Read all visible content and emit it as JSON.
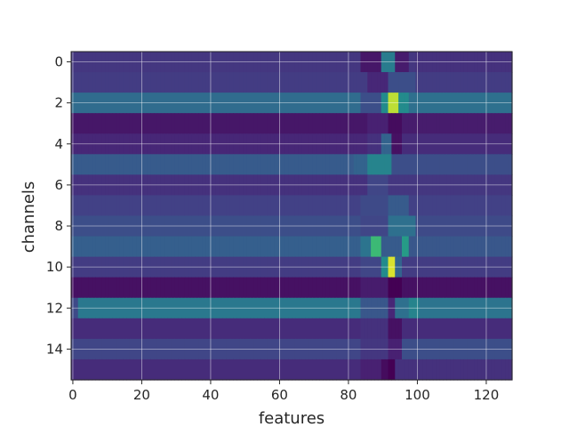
{
  "chart_data": {
    "type": "heatmap",
    "title": "",
    "xlabel": "features",
    "ylabel": "channels",
    "xlim": [
      -0.5,
      127.5
    ],
    "ylim": [
      15.5,
      -0.5
    ],
    "x_ticks": [
      0,
      20,
      40,
      60,
      80,
      100,
      120
    ],
    "y_ticks": [
      0,
      2,
      4,
      6,
      8,
      10,
      12,
      14
    ],
    "grid": true,
    "colormap": "viridis",
    "n_features": 128,
    "n_channels": 16,
    "rows": [
      {
        "channel": 0,
        "base": 0.2,
        "features": [
          [
            84,
            90,
            0.08
          ],
          [
            90,
            94,
            0.52
          ],
          [
            94,
            98,
            0.1
          ],
          [
            100,
            128,
            0.18
          ]
        ]
      },
      {
        "channel": 1,
        "base": 0.22,
        "features": [
          [
            86,
            92,
            0.14
          ],
          [
            92,
            100,
            0.3
          ],
          [
            100,
            128,
            0.22
          ]
        ]
      },
      {
        "channel": 2,
        "base": 0.44,
        "features": [
          [
            84,
            90,
            0.3
          ],
          [
            90,
            92,
            0.6
          ],
          [
            92,
            95,
            0.93
          ],
          [
            95,
            98,
            0.6
          ],
          [
            98,
            128,
            0.46
          ]
        ]
      },
      {
        "channel": 3,
        "base": 0.08,
        "features": [
          [
            86,
            92,
            0.12
          ],
          [
            92,
            96,
            0.04
          ],
          [
            96,
            128,
            0.1
          ]
        ]
      },
      {
        "channel": 4,
        "base": 0.14,
        "features": [
          [
            86,
            90,
            0.18
          ],
          [
            90,
            93,
            0.4
          ],
          [
            93,
            96,
            0.06
          ],
          [
            96,
            128,
            0.16
          ]
        ]
      },
      {
        "channel": 5,
        "base": 0.36,
        "features": [
          [
            82,
            86,
            0.4
          ],
          [
            86,
            93,
            0.56
          ],
          [
            93,
            128,
            0.3
          ]
        ]
      },
      {
        "channel": 6,
        "base": 0.18,
        "features": [
          [
            86,
            92,
            0.26
          ],
          [
            92,
            128,
            0.2
          ]
        ]
      },
      {
        "channel": 7,
        "base": 0.24,
        "features": [
          [
            84,
            92,
            0.28
          ],
          [
            92,
            98,
            0.36
          ],
          [
            98,
            128,
            0.24
          ]
        ]
      },
      {
        "channel": 8,
        "base": 0.3,
        "features": [
          [
            84,
            92,
            0.26
          ],
          [
            92,
            100,
            0.46
          ],
          [
            100,
            128,
            0.28
          ]
        ]
      },
      {
        "channel": 9,
        "base": 0.38,
        "features": [
          [
            84,
            87,
            0.48
          ],
          [
            87,
            90,
            0.76
          ],
          [
            90,
            96,
            0.36
          ],
          [
            96,
            98,
            0.66
          ],
          [
            98,
            128,
            0.34
          ]
        ]
      },
      {
        "channel": 10,
        "base": 0.22,
        "features": [
          [
            84,
            90,
            0.26
          ],
          [
            90,
            92,
            0.6
          ],
          [
            92,
            94,
            0.96
          ],
          [
            94,
            96,
            0.4
          ],
          [
            96,
            128,
            0.22
          ]
        ]
      },
      {
        "channel": 11,
        "base": 0.06,
        "features": [
          [
            84,
            92,
            0.1
          ],
          [
            92,
            96,
            0.0
          ],
          [
            96,
            128,
            0.06
          ]
        ]
      },
      {
        "channel": 12,
        "base": 0.5,
        "features": [
          [
            0,
            2,
            0.28
          ],
          [
            84,
            92,
            0.34
          ],
          [
            92,
            94,
            0.14
          ],
          [
            94,
            98,
            0.46
          ],
          [
            98,
            101,
            0.56
          ],
          [
            101,
            128,
            0.48
          ]
        ]
      },
      {
        "channel": 13,
        "base": 0.16,
        "features": [
          [
            84,
            92,
            0.18
          ],
          [
            92,
            96,
            0.06
          ],
          [
            96,
            128,
            0.16
          ]
        ]
      },
      {
        "channel": 14,
        "base": 0.26,
        "features": [
          [
            84,
            92,
            0.2
          ],
          [
            92,
            96,
            0.12
          ],
          [
            96,
            128,
            0.3
          ]
        ]
      },
      {
        "channel": 15,
        "base": 0.16,
        "features": [
          [
            84,
            90,
            0.12
          ],
          [
            90,
            92,
            0.04
          ],
          [
            92,
            94,
            0.0
          ],
          [
            94,
            128,
            0.18
          ]
        ]
      }
    ]
  }
}
